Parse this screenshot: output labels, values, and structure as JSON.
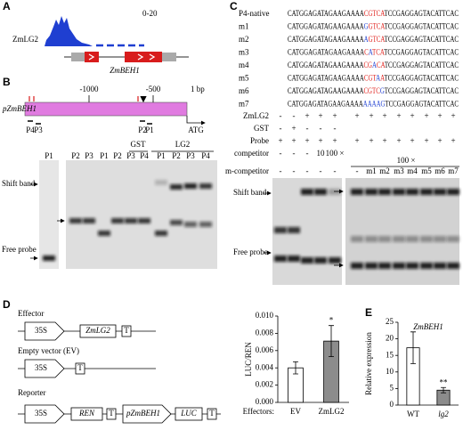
{
  "panels": {
    "A": {
      "label": "A",
      "track": "ZmLG2",
      "scale": "0-20",
      "gene": "ZmBEH1"
    },
    "B": {
      "label": "B",
      "promoter": "pZmBEH1",
      "positions": [
        "-1000",
        "-500",
        "1 bp"
      ],
      "atg": "ATG",
      "probes": [
        "P4",
        "P3",
        "P2",
        "P1"
      ],
      "groups": [
        "GST",
        "LG2"
      ],
      "lanes": [
        "P1",
        "P2",
        "P3",
        "P1",
        "P2",
        "P3",
        "P4",
        "P1",
        "P2",
        "P3",
        "P4"
      ],
      "shift_band": "Shift band",
      "free_probe": "Free probe"
    },
    "C": {
      "label": "C",
      "sequences": [
        {
          "name": "P4-native",
          "parts": [
            {
              "text": "CATGGAGATAGAAGAAAA",
              "color": "#000000"
            },
            {
              "text": "CGTCA",
              "color": "#e0201b"
            },
            {
              "text": "TCCGAGGAGTACATTCAC",
              "color": "#000000"
            }
          ]
        },
        {
          "name": "m1",
          "parts": [
            {
              "text": "CATGGAGATAGAAGAAAA",
              "color": "#000000"
            },
            {
              "text": "G",
              "color": "#1f3fd1"
            },
            {
              "text": "GTCA",
              "color": "#e0201b"
            },
            {
              "text": "TCCGAGGAGTACATTCAC",
              "color": "#000000"
            }
          ]
        },
        {
          "name": "m2",
          "parts": [
            {
              "text": "CATGGAGATAGAAGAAAA",
              "color": "#000000"
            },
            {
              "text": "A",
              "color": "#1f3fd1"
            },
            {
              "text": "GTCA",
              "color": "#e0201b"
            },
            {
              "text": "TCCGAGGAGTACATTCAC",
              "color": "#000000"
            }
          ]
        },
        {
          "name": "m3",
          "parts": [
            {
              "text": "CATGGAGATAGAAGAAAA",
              "color": "#000000"
            },
            {
              "text": "C",
              "color": "#e0201b"
            },
            {
              "text": "A",
              "color": "#1f3fd1"
            },
            {
              "text": "TCA",
              "color": "#e0201b"
            },
            {
              "text": "TCCGAGGAGTACATTCAC",
              "color": "#000000"
            }
          ]
        },
        {
          "name": "m4",
          "parts": [
            {
              "text": "CATGGAGATAGAAGAAAA",
              "color": "#000000"
            },
            {
              "text": "CG",
              "color": "#e0201b"
            },
            {
              "text": "A",
              "color": "#1f3fd1"
            },
            {
              "text": "CA",
              "color": "#e0201b"
            },
            {
              "text": "TCCGAGGAGTACATTCAC",
              "color": "#000000"
            }
          ]
        },
        {
          "name": "m5",
          "parts": [
            {
              "text": "CATGGAGATAGAAGAAAA",
              "color": "#000000"
            },
            {
              "text": "CGT",
              "color": "#e0201b"
            },
            {
              "text": "A",
              "color": "#1f3fd1"
            },
            {
              "text": "A",
              "color": "#e0201b"
            },
            {
              "text": "TCCGAGGAGTACATTCAC",
              "color": "#000000"
            }
          ]
        },
        {
          "name": "m6",
          "parts": [
            {
              "text": "CATGGAGATAGAAGAAAA",
              "color": "#000000"
            },
            {
              "text": "CGTC",
              "color": "#e0201b"
            },
            {
              "text": "G",
              "color": "#1f3fd1"
            },
            {
              "text": "TCCGAGGAGTACATTCAC",
              "color": "#000000"
            }
          ]
        },
        {
          "name": "m7",
          "parts": [
            {
              "text": "CATGGAGATAGAAGAAAA",
              "color": "#000000"
            },
            {
              "text": "AAAAG",
              "color": "#1f3fd1"
            },
            {
              "text": "TCCGAGGAGTACATTCAC",
              "color": "#000000"
            }
          ]
        }
      ],
      "rows": [
        {
          "label": "ZmLG2",
          "left": [
            "-",
            "-",
            "+",
            "+",
            "+"
          ],
          "right": [
            "+",
            "+",
            "+",
            "+",
            "+",
            "+",
            "+",
            "+"
          ]
        },
        {
          "label": "GST",
          "left": [
            "-",
            "+",
            "-",
            "-",
            "-"
          ],
          "right": []
        },
        {
          "label": "Probe",
          "left": [
            "+",
            "+",
            "+",
            "+",
            "+"
          ],
          "right": [
            "+",
            "+",
            "+",
            "+",
            "+",
            "+",
            "+",
            "+"
          ]
        },
        {
          "label": "competitor",
          "left": [
            "-",
            "-",
            "-",
            "10",
            "100 ×"
          ],
          "right": []
        },
        {
          "label": "m-competitor",
          "left": [
            "-",
            "-",
            "-",
            "-",
            "-"
          ],
          "right": [
            "-",
            "m1",
            "m2",
            "m3",
            "m4",
            "m5",
            "m6",
            "m7"
          ]
        }
      ],
      "right_competitor": "100 ×",
      "shift_band": "Shift band",
      "free_probe": "Free probe"
    },
    "D": {
      "label": "D",
      "constructs": [
        {
          "title": "Effector",
          "elements": [
            "35S",
            "ZmLG2",
            "T"
          ]
        },
        {
          "title": "Empty vector (EV)",
          "elements": [
            "35S",
            "T"
          ]
        },
        {
          "title": "Reporter",
          "elements": [
            "35S",
            "REN",
            "T",
            "pZmBEH1",
            "LUC",
            "T"
          ]
        }
      ],
      "chart": {
        "type": "bar",
        "ylabel": "LUC/REN",
        "xlabel": "Effectors:",
        "categories": [
          "EV",
          "ZmLG2"
        ],
        "values": [
          0.004,
          0.0071
        ],
        "errors": [
          0.0007,
          0.0018
        ],
        "colors": [
          "#ffffff",
          "#8c8c8c"
        ],
        "annotations": [
          null,
          "*"
        ],
        "ylim": [
          0,
          0.01
        ],
        "yticks": [
          {
            "value": 0,
            "label": "0.000"
          },
          {
            "value": 0.002,
            "label": "0.002"
          },
          {
            "value": 0.004,
            "label": "0.004"
          },
          {
            "value": 0.006,
            "label": "0.006"
          },
          {
            "value": 0.008,
            "label": "0.008"
          },
          {
            "value": 0.01,
            "label": "0.010"
          }
        ]
      }
    },
    "E": {
      "label": "E",
      "chart": {
        "type": "bar",
        "title": "ZmBEH1",
        "ylabel": "Relative expression",
        "categories": [
          "WT",
          "lg2"
        ],
        "values": [
          17.3,
          4.5
        ],
        "errors": [
          4.8,
          0.8
        ],
        "colors": [
          "#ffffff",
          "#8c8c8c"
        ],
        "annotations": [
          null,
          "**"
        ],
        "ylim": [
          0,
          25
        ],
        "yticks": [
          0,
          5,
          10,
          15,
          20,
          25
        ]
      }
    }
  }
}
